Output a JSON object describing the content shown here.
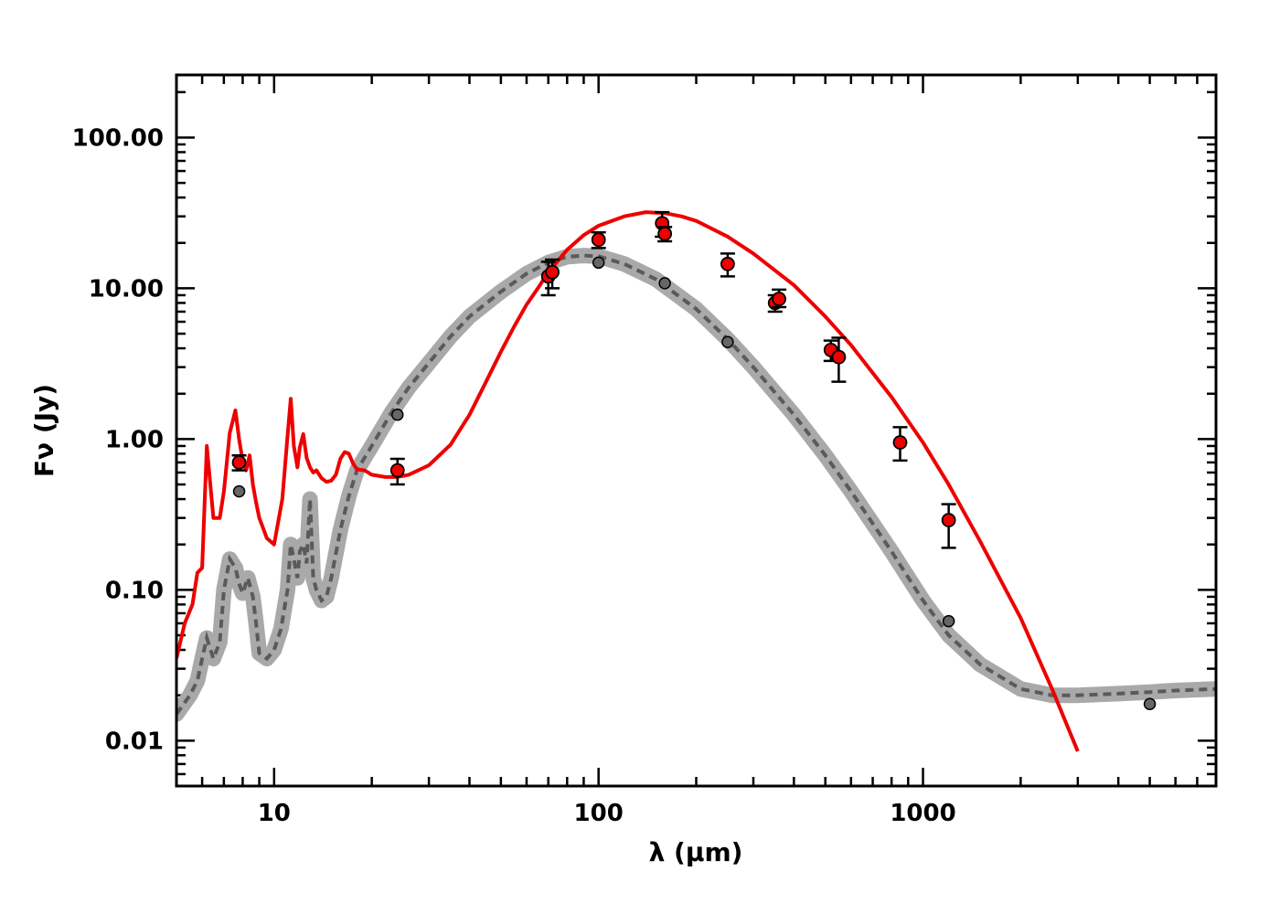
{
  "chart_data": {
    "type": "line",
    "title": "",
    "xlabel": "λ (μm)",
    "ylabel": "Fν (Jy)",
    "xscale": "log",
    "yscale": "log",
    "xlim": [
      5,
      8000
    ],
    "ylim": [
      0.005,
      260
    ],
    "x_ticks": [
      {
        "value": 10,
        "label": "10"
      },
      {
        "value": 100,
        "label": "100"
      },
      {
        "value": 1000,
        "label": "1000"
      }
    ],
    "y_ticks": [
      {
        "value": 0.01,
        "label": "0.01"
      },
      {
        "value": 0.1,
        "label": "0.10"
      },
      {
        "value": 1,
        "label": "1.00"
      },
      {
        "value": 10,
        "label": "10.00"
      },
      {
        "value": 100,
        "label": "100.00"
      }
    ],
    "colors": {
      "red": "#ee0000",
      "gray_band": "#a9a9a9",
      "gray_dash": "#5a5a5a",
      "gray_point": "#666666",
      "axis": "#000000"
    },
    "series": [
      {
        "name": "red model",
        "style": "solid",
        "x": [
          5.0,
          5.3,
          5.6,
          5.8,
          6.0,
          6.2,
          6.5,
          6.8,
          7.0,
          7.3,
          7.6,
          7.8,
          8.0,
          8.2,
          8.4,
          8.6,
          8.8,
          9.0,
          9.5,
          10.0,
          10.6,
          11.0,
          11.25,
          11.5,
          11.8,
          12.0,
          12.3,
          12.6,
          12.9,
          13.2,
          13.5,
          14.0,
          14.5,
          15.0,
          15.5,
          16.0,
          16.5,
          17.0,
          17.5,
          18.0,
          19.0,
          20.0,
          22.0,
          24.0,
          26.0,
          30.0,
          35.0,
          40.0,
          45.0,
          50.0,
          55.0,
          60.0,
          65.0,
          70.0,
          80.0,
          90.0,
          100.0,
          120.0,
          140.0,
          160.0,
          180.0,
          200.0,
          250.0,
          300.0,
          400.0,
          500.0,
          600.0,
          800.0,
          1000.0,
          1200.0,
          1500.0,
          2000.0,
          2500.0,
          3000.0
        ],
        "y": [
          0.035,
          0.06,
          0.08,
          0.13,
          0.14,
          0.9,
          0.3,
          0.3,
          0.45,
          1.1,
          1.55,
          1.0,
          0.72,
          0.62,
          0.78,
          0.5,
          0.38,
          0.3,
          0.22,
          0.2,
          0.4,
          1.05,
          1.85,
          0.9,
          0.65,
          0.88,
          1.08,
          0.75,
          0.65,
          0.6,
          0.62,
          0.55,
          0.52,
          0.53,
          0.58,
          0.74,
          0.82,
          0.8,
          0.69,
          0.63,
          0.62,
          0.58,
          0.56,
          0.56,
          0.58,
          0.67,
          0.92,
          1.45,
          2.4,
          3.8,
          5.6,
          7.8,
          10.0,
          12.8,
          18.0,
          22.5,
          26.0,
          30.0,
          32.0,
          31.5,
          30.0,
          28.0,
          22.0,
          17.0,
          10.5,
          6.5,
          4.2,
          1.9,
          0.95,
          0.5,
          0.21,
          0.065,
          0.022,
          0.0085
        ]
      },
      {
        "name": "gray model",
        "style": "dashed",
        "x": [
          5.0,
          5.5,
          5.8,
          6.0,
          6.2,
          6.5,
          6.8,
          7.0,
          7.3,
          7.6,
          7.8,
          8.0,
          8.3,
          8.6,
          8.8,
          9.0,
          9.5,
          10.0,
          10.5,
          11.0,
          11.25,
          11.5,
          11.8,
          12.0,
          12.3,
          12.6,
          12.9,
          13.2,
          13.5,
          14.0,
          14.5,
          15.0,
          16.0,
          17.0,
          18.0,
          20.0,
          23.0,
          26.0,
          30.0,
          35.0,
          40.0,
          50.0,
          60.0,
          70.0,
          80.0,
          90.0,
          100.0,
          120.0,
          150.0,
          200.0,
          250.0,
          300.0,
          400.0,
          500.0,
          600.0,
          800.0,
          1000.0,
          1200.0,
          1500.0,
          2000.0,
          2500.0,
          3000.0,
          4000.0,
          5000.0,
          6000.0,
          8000.0
        ],
        "y": [
          0.015,
          0.02,
          0.025,
          0.035,
          0.048,
          0.035,
          0.045,
          0.1,
          0.16,
          0.14,
          0.11,
          0.095,
          0.12,
          0.09,
          0.06,
          0.038,
          0.035,
          0.04,
          0.055,
          0.1,
          0.2,
          0.16,
          0.12,
          0.18,
          0.2,
          0.15,
          0.4,
          0.12,
          0.1,
          0.085,
          0.09,
          0.12,
          0.25,
          0.42,
          0.62,
          0.9,
          1.5,
          2.2,
          3.2,
          4.8,
          6.5,
          9.5,
          12.5,
          14.8,
          16.2,
          16.5,
          16.3,
          14.5,
          11.5,
          7.3,
          4.6,
          3.0,
          1.45,
          0.78,
          0.45,
          0.18,
          0.085,
          0.05,
          0.032,
          0.022,
          0.02,
          0.02,
          0.0205,
          0.021,
          0.0215,
          0.022
        ]
      }
    ],
    "points_red": [
      {
        "x": 7.8,
        "y": 0.7,
        "err_lo": 0.62,
        "err_hi": 0.78
      },
      {
        "x": 24.0,
        "y": 0.62,
        "err_lo": 0.5,
        "err_hi": 0.74
      },
      {
        "x": 70.0,
        "y": 12.0,
        "err_lo": 9.0,
        "err_hi": 15.0
      },
      {
        "x": 72.0,
        "y": 12.8,
        "err_lo": 10.0,
        "err_hi": 15.5
      },
      {
        "x": 100.0,
        "y": 21.0,
        "err_lo": 18.5,
        "err_hi": 23.5
      },
      {
        "x": 157.0,
        "y": 27.0,
        "err_lo": 22.0,
        "err_hi": 32.0
      },
      {
        "x": 160.0,
        "y": 23.0,
        "err_lo": 20.5,
        "err_hi": 25.5
      },
      {
        "x": 250.0,
        "y": 14.5,
        "err_lo": 12.0,
        "err_hi": 17.0
      },
      {
        "x": 350.0,
        "y": 8.0,
        "err_lo": 7.0,
        "err_hi": 9.0
      },
      {
        "x": 360.0,
        "y": 8.5,
        "err_lo": 7.5,
        "err_hi": 9.8
      },
      {
        "x": 520.0,
        "y": 3.9,
        "err_lo": 3.3,
        "err_hi": 4.5
      },
      {
        "x": 550.0,
        "y": 3.5,
        "err_lo": 2.4,
        "err_hi": 4.7
      },
      {
        "x": 850.0,
        "y": 0.95,
        "err_lo": 0.72,
        "err_hi": 1.2
      },
      {
        "x": 1200.0,
        "y": 0.29,
        "err_lo": 0.19,
        "err_hi": 0.37
      }
    ],
    "points_gray": [
      {
        "x": 7.8,
        "y": 0.45
      },
      {
        "x": 24.0,
        "y": 1.45
      },
      {
        "x": 100.0,
        "y": 14.8
      },
      {
        "x": 160.0,
        "y": 10.8
      },
      {
        "x": 250.0,
        "y": 4.4
      },
      {
        "x": 1200.0,
        "y": 0.062
      },
      {
        "x": 5000.0,
        "y": 0.0175
      }
    ]
  }
}
